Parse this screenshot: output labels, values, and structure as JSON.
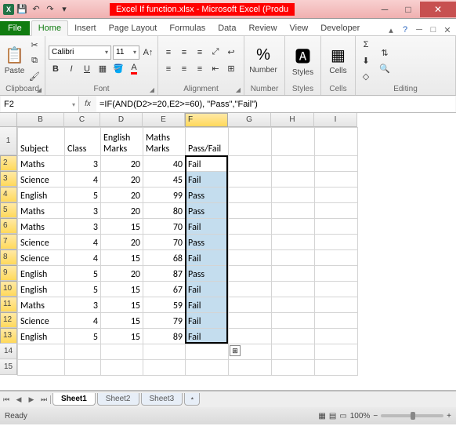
{
  "window": {
    "title": "Excel If function.xlsx - Microsoft Excel (Produ"
  },
  "tabs": {
    "file": "File",
    "home": "Home",
    "insert": "Insert",
    "pagelayout": "Page Layout",
    "formulas": "Formulas",
    "data": "Data",
    "review": "Review",
    "view": "View",
    "developer": "Developer"
  },
  "ribbon": {
    "clipboard": {
      "paste": "Paste",
      "label": "Clipboard"
    },
    "font": {
      "name": "Calibri",
      "size": "11",
      "label": "Font"
    },
    "alignment": {
      "label": "Alignment"
    },
    "number": {
      "label": "Number",
      "btn": "Number"
    },
    "styles": {
      "label": "Styles",
      "btn": "Styles"
    },
    "cells": {
      "label": "Cells",
      "btn": "Cells"
    },
    "editing": {
      "label": "Editing"
    }
  },
  "namebox": "F2",
  "formulabar": "=IF(AND(D2>=20,E2>=60), \"Pass\",\"Fail\")",
  "columns": [
    {
      "letter": "B",
      "w": 60
    },
    {
      "letter": "C",
      "w": 46
    },
    {
      "letter": "D",
      "w": 54
    },
    {
      "letter": "E",
      "w": 54
    },
    {
      "letter": "F",
      "w": 55
    },
    {
      "letter": "G",
      "w": 55
    },
    {
      "letter": "H",
      "w": 55
    },
    {
      "letter": "I",
      "w": 55
    }
  ],
  "headerRow": {
    "subject": "Subject",
    "class": "Class",
    "eng": "English Marks",
    "math": "Maths Marks",
    "pf": "Pass/Fail"
  },
  "rows": [
    {
      "n": 2,
      "subject": "Maths",
      "class": 3,
      "eng": 20,
      "math": 40,
      "pf": "Fail"
    },
    {
      "n": 3,
      "subject": "Science",
      "class": 4,
      "eng": 20,
      "math": 45,
      "pf": "Fail"
    },
    {
      "n": 4,
      "subject": "English",
      "class": 5,
      "eng": 20,
      "math": 99,
      "pf": "Pass"
    },
    {
      "n": 5,
      "subject": "Maths",
      "class": 3,
      "eng": 20,
      "math": 80,
      "pf": "Pass"
    },
    {
      "n": 6,
      "subject": "Maths",
      "class": 3,
      "eng": 15,
      "math": 70,
      "pf": "Fail"
    },
    {
      "n": 7,
      "subject": "Science",
      "class": 4,
      "eng": 20,
      "math": 70,
      "pf": "Pass"
    },
    {
      "n": 8,
      "subject": "Science",
      "class": 4,
      "eng": 15,
      "math": 68,
      "pf": "Fail"
    },
    {
      "n": 9,
      "subject": "English",
      "class": 5,
      "eng": 20,
      "math": 87,
      "pf": "Pass"
    },
    {
      "n": 10,
      "subject": "English",
      "class": 5,
      "eng": 15,
      "math": 67,
      "pf": "Fail"
    },
    {
      "n": 11,
      "subject": "Maths",
      "class": 3,
      "eng": 15,
      "math": 59,
      "pf": "Fail"
    },
    {
      "n": 12,
      "subject": "Science",
      "class": 4,
      "eng": 15,
      "math": 79,
      "pf": "Fail"
    },
    {
      "n": 13,
      "subject": "English",
      "class": 5,
      "eng": 15,
      "math": 89,
      "pf": "Fail"
    }
  ],
  "sheets": {
    "s1": "Sheet1",
    "s2": "Sheet2",
    "s3": "Sheet3"
  },
  "status": {
    "ready": "Ready",
    "zoom": "100%"
  },
  "colors": {
    "sel": "#c4ddee",
    "heading": "#ffd95b"
  }
}
